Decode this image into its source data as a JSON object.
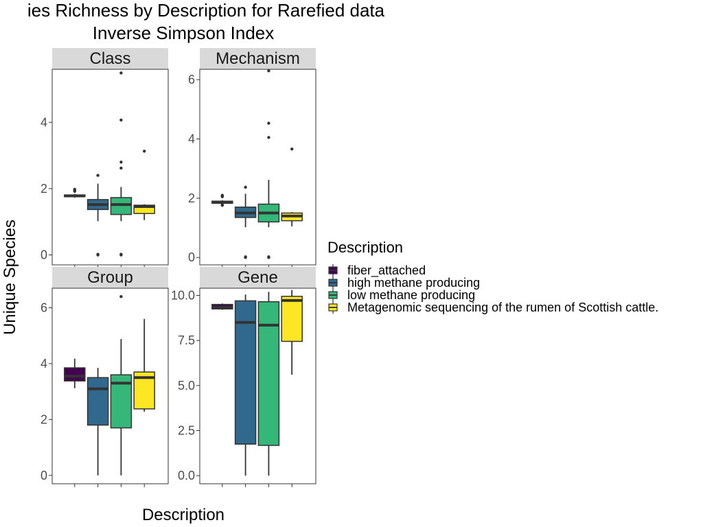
{
  "title_line1": "ies Richness by Description for Rarefied data",
  "title_line2": "Inverse Simpson Index",
  "chart_data": {
    "type": "box",
    "xlabel": "Description",
    "ylabel": "Unique Species",
    "legend_title": "Description",
    "legend_position": "right",
    "grid": false,
    "categories": [
      "fiber_attached",
      "high methane producing",
      "low methane producing",
      "Metagenomic sequencing of the rumen of Scottish cattle."
    ],
    "colors": [
      "#440154",
      "#31688e",
      "#35b779",
      "#fde725"
    ],
    "panels": [
      {
        "name": "Class",
        "ylim": [
          -0.3,
          5.6
        ],
        "yticks": [
          0,
          2,
          4
        ],
        "ytick_labels": [
          "0",
          "2",
          "4"
        ],
        "boxes": [
          {
            "q1": 1.76,
            "median": 1.78,
            "q3": 1.81,
            "lower": 1.73,
            "upper": 1.84,
            "outliers": [
              1.92,
              1.95,
              1.98
            ]
          },
          {
            "q1": 1.37,
            "median": 1.52,
            "q3": 1.67,
            "lower": 1.02,
            "upper": 2.15,
            "outliers": [
              2.4,
              0.0,
              0.02
            ]
          },
          {
            "q1": 1.22,
            "median": 1.52,
            "q3": 1.73,
            "lower": 1.02,
            "upper": 2.05,
            "outliers": [
              2.62,
              2.8,
              4.07,
              5.49,
              0.0,
              0.02
            ]
          },
          {
            "q1": 1.25,
            "median": 1.46,
            "q3": 1.5,
            "lower": 1.05,
            "upper": 1.53,
            "outliers": [
              3.13
            ]
          }
        ]
      },
      {
        "name": "Mechanism",
        "ylim": [
          -0.25,
          6.35
        ],
        "yticks": [
          0,
          2,
          4,
          6
        ],
        "ytick_labels": [
          "0",
          "2",
          "4",
          "6"
        ],
        "boxes": [
          {
            "q1": 1.83,
            "median": 1.86,
            "q3": 1.9,
            "lower": 1.8,
            "upper": 1.93,
            "outliers": [
              1.76,
              1.78,
              2.05,
              2.08,
              2.1
            ]
          },
          {
            "q1": 1.35,
            "median": 1.5,
            "q3": 1.7,
            "lower": 1.02,
            "upper": 2.15,
            "outliers": [
              2.37,
              0.0,
              0.02
            ]
          },
          {
            "q1": 1.2,
            "median": 1.5,
            "q3": 1.8,
            "lower": 1.02,
            "upper": 2.62,
            "outliers": [
              4.05,
              4.53,
              6.3,
              0.0,
              0.02
            ]
          },
          {
            "q1": 1.24,
            "median": 1.4,
            "q3": 1.5,
            "lower": 1.05,
            "upper": 1.53,
            "outliers": [
              3.66
            ]
          }
        ]
      },
      {
        "name": "Group",
        "ylim": [
          -0.3,
          6.7
        ],
        "yticks": [
          0,
          2,
          4,
          6
        ],
        "ytick_labels": [
          "0",
          "2",
          "4",
          "6"
        ],
        "boxes": [
          {
            "q1": 3.38,
            "median": 3.55,
            "q3": 3.85,
            "lower": 3.12,
            "upper": 4.18,
            "outliers": []
          },
          {
            "q1": 1.8,
            "median": 3.1,
            "q3": 3.5,
            "lower": 0.0,
            "upper": 3.85,
            "outliers": []
          },
          {
            "q1": 1.7,
            "median": 3.3,
            "q3": 3.6,
            "lower": 0.0,
            "upper": 4.88,
            "outliers": [
              6.4
            ]
          },
          {
            "q1": 2.38,
            "median": 3.5,
            "q3": 3.7,
            "lower": 2.28,
            "upper": 5.6,
            "outliers": []
          }
        ]
      },
      {
        "name": "Gene",
        "ylim": [
          -0.45,
          10.4
        ],
        "yticks": [
          0,
          2.5,
          5,
          7.5,
          10
        ],
        "ytick_labels": [
          "0.0",
          "2.5",
          "5.0",
          "7.5",
          "10.0"
        ],
        "boxes": [
          {
            "q1": 9.25,
            "median": 9.35,
            "q3": 9.5,
            "lower": 9.2,
            "upper": 9.55,
            "outliers": []
          },
          {
            "q1": 1.75,
            "median": 8.5,
            "q3": 9.7,
            "lower": 0.0,
            "upper": 10.05,
            "outliers": []
          },
          {
            "q1": 1.68,
            "median": 8.35,
            "q3": 9.65,
            "lower": 0.0,
            "upper": 10.2,
            "outliers": []
          },
          {
            "q1": 7.45,
            "median": 9.72,
            "q3": 9.95,
            "lower": 5.6,
            "upper": 10.3,
            "outliers": []
          }
        ]
      }
    ]
  }
}
